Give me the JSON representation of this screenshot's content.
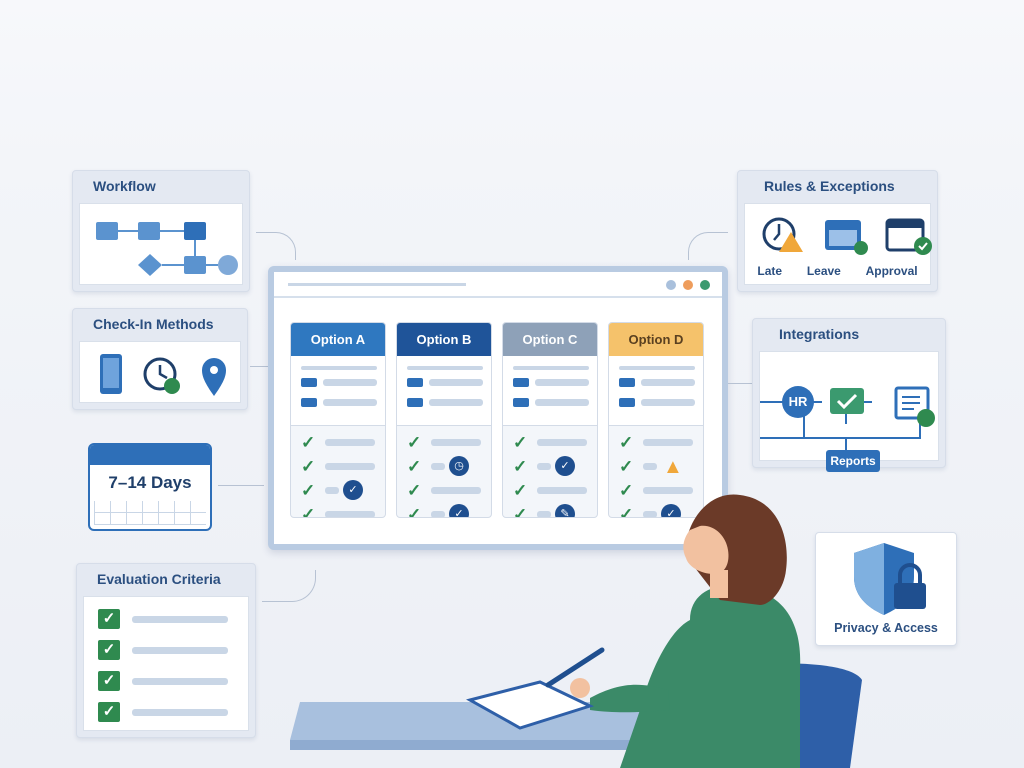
{
  "workflow": {
    "title": "Workflow"
  },
  "checkin": {
    "title": "Check-In Methods",
    "icons": [
      "phone-icon",
      "clock-icon",
      "location-pin-icon"
    ]
  },
  "calendar": {
    "label": "7–14 Days"
  },
  "evaluation": {
    "title": "Evaluation Criteria",
    "items": 4
  },
  "rules": {
    "title": "Rules & Exceptions",
    "items": [
      {
        "label": "Late",
        "icon": "clock-warning-icon"
      },
      {
        "label": "Leave",
        "icon": "calendar-check-icon"
      },
      {
        "label": "Approval",
        "icon": "calendar-approval-icon"
      }
    ]
  },
  "integrations": {
    "title": "Integrations",
    "hr": "HR",
    "reports": "Reports"
  },
  "privacy": {
    "title": "Privacy & Access"
  },
  "options": [
    {
      "label": "Option A",
      "color": "#2f78c0",
      "text_color": "#ffffff",
      "badges": [
        null,
        null,
        "check",
        null
      ]
    },
    {
      "label": "Option B",
      "color": "#1f5499",
      "text_color": "#ffffff",
      "badges": [
        null,
        "clock",
        null,
        "check"
      ]
    },
    {
      "label": "Option C",
      "color": "#8ea1b8",
      "text_color": "#ffffff",
      "badges": [
        null,
        "check",
        null,
        "pen"
      ]
    },
    {
      "label": "Option D",
      "color": "#f5c26b",
      "text_color": "#5a4020",
      "badges": [
        null,
        "warning",
        null,
        "check"
      ]
    }
  ],
  "window_dots": [
    "#a9c0dc",
    "#ee9d5c",
    "#3b9a6f"
  ]
}
